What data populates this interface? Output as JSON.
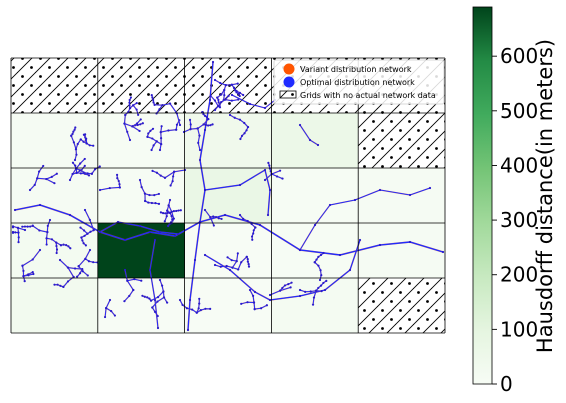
{
  "legend": {
    "items": [
      {
        "label": "Variant distribution network",
        "marker": "circle",
        "color": "#ff5500"
      },
      {
        "label": "Optimal distribution network",
        "marker": "circle",
        "color": "#1f2bff"
      },
      {
        "label": "Grids with no actual network data",
        "marker": "hatched-rect",
        "color": "#000000"
      }
    ]
  },
  "colorbar": {
    "title": "Hausdorff distance(in meters)",
    "range": [
      0,
      690
    ],
    "ticks": [
      0,
      100,
      200,
      300,
      400,
      500,
      600
    ],
    "tick_labels": [
      "0",
      "100",
      "200",
      "300",
      "400",
      "500",
      "600"
    ],
    "colormap": "Greens",
    "colors": [
      "#f7fcf5",
      "#e5f5e0",
      "#c7e9c0",
      "#a1d99b",
      "#74c476",
      "#41ab5d",
      "#238b45",
      "#00441b"
    ]
  },
  "grid": {
    "rows": 5,
    "cols": 5,
    "hausdorff_m": [
      [
        null,
        null,
        null,
        null,
        null
      ],
      [
        10,
        5,
        40,
        60,
        null
      ],
      [
        10,
        5,
        70,
        5,
        10
      ],
      [
        20,
        690,
        0,
        5,
        10
      ],
      [
        30,
        0,
        0,
        15,
        null
      ]
    ],
    "no_data_pattern": "hatched with dots"
  },
  "network_colors": {
    "variant": "#ff5500",
    "optimal": "#1f2bff"
  }
}
